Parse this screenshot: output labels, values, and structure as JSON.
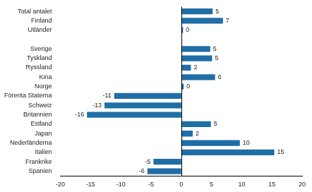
{
  "chart_data": {
    "type": "bar",
    "orientation": "horizontal",
    "categories": [
      "Total antalet",
      "Finland",
      "Utländer",
      null,
      "Sverige",
      "Tyskland",
      "Ryssland",
      "Kina",
      "Norge",
      "Förenta Staterna",
      "Schweiz",
      "Britannien",
      "Estland",
      "Japan",
      "Nederländerna",
      "Italien",
      "Frankrike",
      "Spanien"
    ],
    "values": [
      5.2,
      6.9,
      0.3,
      null,
      4.8,
      5.1,
      1.6,
      5.6,
      0.4,
      -11.1,
      -12.7,
      -15.6,
      4.9,
      1.9,
      9.7,
      15.4,
      -4.6,
      -5.6
    ],
    "value_labels": [
      "5",
      "7",
      "0",
      null,
      "5",
      "5",
      "2",
      "6",
      "0",
      "-11",
      "-13",
      "-16",
      "5",
      "2",
      "10",
      "15",
      "-5",
      "-6"
    ],
    "data_labels": true,
    "color": "#1f6ea6",
    "xlim": [
      -20,
      20
    ],
    "xticks": [
      -20,
      -15,
      -10,
      -5,
      0,
      5,
      10,
      15,
      20
    ],
    "grid": false
  }
}
